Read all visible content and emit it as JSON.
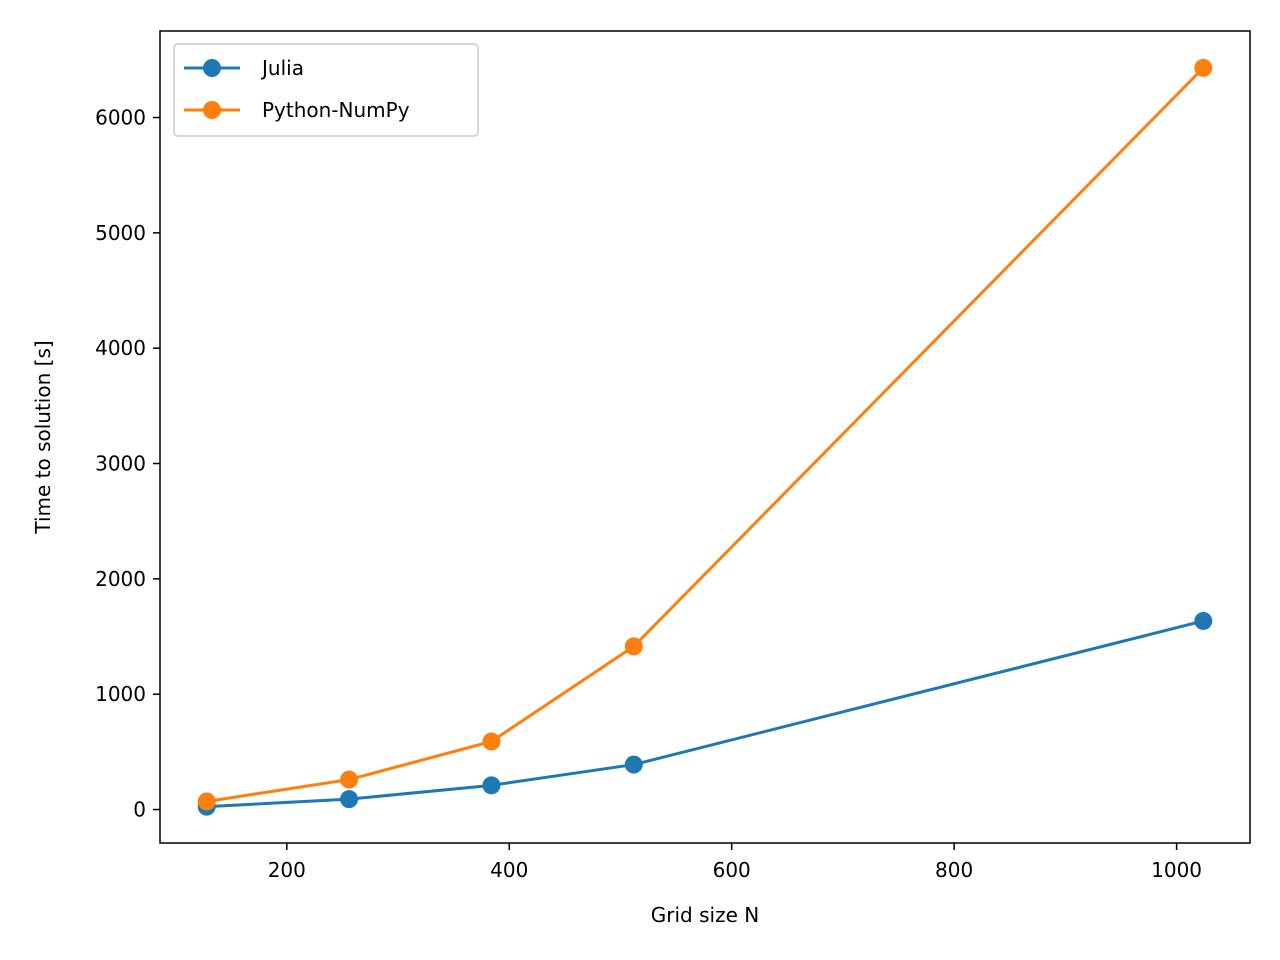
{
  "chart_data": {
    "type": "line",
    "title": "",
    "xlabel": "Grid size N",
    "ylabel": "Time to solution [s]",
    "xlim": [
      86,
      1066
    ],
    "ylim": [
      -290,
      6750
    ],
    "xticks": [
      200,
      400,
      600,
      800,
      1000
    ],
    "yticks": [
      0,
      1000,
      2000,
      3000,
      4000,
      5000,
      6000
    ],
    "grid": false,
    "legend_position": "upper-left",
    "series": [
      {
        "name": "Julia",
        "color": "#1f77b4",
        "marker": "circle",
        "x": [
          128,
          256,
          384,
          512,
          1024
        ],
        "y": [
          25,
          90,
          210,
          390,
          1635
        ]
      },
      {
        "name": "Python-NumPy",
        "color": "#ff7f0e",
        "marker": "circle",
        "x": [
          128,
          256,
          384,
          512,
          1024
        ],
        "y": [
          70,
          260,
          590,
          1415,
          6430
        ]
      }
    ]
  }
}
